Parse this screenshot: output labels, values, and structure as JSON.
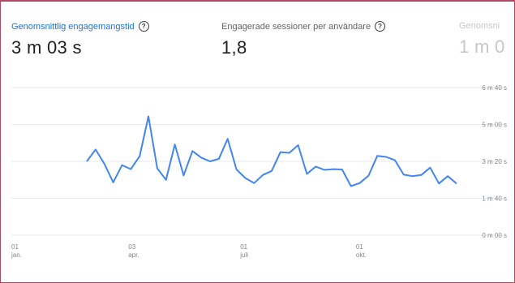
{
  "metrics": [
    {
      "label": "Genomsnittlig engagemangstid",
      "value": "3 m 03 s",
      "help_icon": "question-circle-icon",
      "state": "selected",
      "color": "#1a73e8"
    },
    {
      "label": "Engagerade sessioner per användare",
      "value": "1,8",
      "help_icon": "question-circle-icon",
      "state": "normal"
    },
    {
      "label": "Genomsni",
      "value": "1 m 0",
      "state": "partially-visible"
    }
  ],
  "chart_data": {
    "type": "line",
    "series": [
      {
        "values": [
          [
            "2024-03-01",
            200
          ],
          [
            "2024-03-08",
            232
          ],
          [
            "2024-03-15",
            193
          ],
          [
            "2024-03-22",
            143
          ],
          [
            "2024-03-29",
            190
          ],
          [
            "2024-04-05",
            179
          ],
          [
            "2024-04-12",
            214
          ],
          [
            "2024-04-19",
            322
          ],
          [
            "2024-04-26",
            181
          ],
          [
            "2024-05-03",
            150
          ],
          [
            "2024-05-10",
            246
          ],
          [
            "2024-05-17",
            162
          ],
          [
            "2024-05-24",
            228
          ],
          [
            "2024-05-31",
            210
          ],
          [
            "2024-06-07",
            200
          ],
          [
            "2024-06-14",
            207
          ],
          [
            "2024-06-21",
            261
          ],
          [
            "2024-06-28",
            178
          ],
          [
            "2024-07-05",
            155
          ],
          [
            "2024-07-12",
            141
          ],
          [
            "2024-07-19",
            163
          ],
          [
            "2024-07-26",
            174
          ],
          [
            "2024-08-02",
            225
          ],
          [
            "2024-08-09",
            223
          ],
          [
            "2024-08-16",
            244
          ],
          [
            "2024-08-23",
            166
          ],
          [
            "2024-08-30",
            186
          ],
          [
            "2024-09-06",
            177
          ],
          [
            "2024-09-13",
            179
          ],
          [
            "2024-09-20",
            178
          ],
          [
            "2024-09-27",
            133
          ],
          [
            "2024-10-04",
            141
          ],
          [
            "2024-10-11",
            161
          ],
          [
            "2024-10-18",
            215
          ],
          [
            "2024-10-25",
            212
          ],
          [
            "2024-11-01",
            203
          ],
          [
            "2024-11-08",
            164
          ],
          [
            "2024-11-15",
            160
          ],
          [
            "2024-11-22",
            163
          ],
          [
            "2024-11-29",
            183
          ],
          [
            "2024-12-06",
            140
          ],
          [
            "2024-12-13",
            160
          ],
          [
            "2024-12-20",
            140
          ]
        ],
        "color": "#4285f4"
      }
    ],
    "x_ticks": [
      {
        "date": "2024-01-01",
        "day": "01",
        "month": "jan."
      },
      {
        "date": "2024-04-03",
        "day": "03",
        "month": "apr."
      },
      {
        "date": "2024-07-01",
        "day": "01",
        "month": "juli"
      },
      {
        "date": "2024-10-01",
        "day": "01",
        "month": "okt."
      }
    ],
    "x_range": [
      "2024-01-01",
      "2024-12-31"
    ],
    "y_ticks": [
      {
        "value": 0,
        "label": "0 m 00 s"
      },
      {
        "value": 100,
        "label": "1 m 40 s"
      },
      {
        "value": 200,
        "label": "3 m 20 s"
      },
      {
        "value": 300,
        "label": "5 m 00 s"
      },
      {
        "value": 400,
        "label": "6 m 40 s"
      }
    ],
    "ylim": [
      0,
      400
    ],
    "grid": true
  }
}
